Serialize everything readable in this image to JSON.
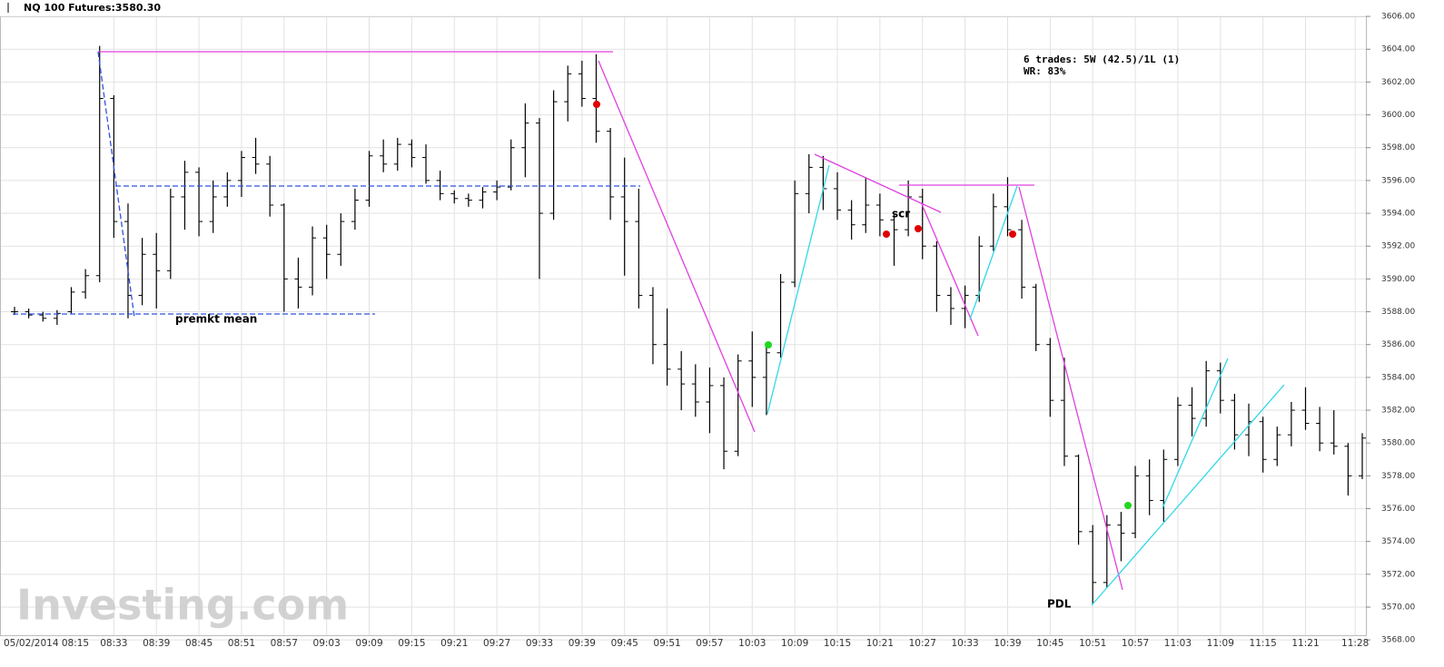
{
  "chart_data": {
    "type": "ohlc",
    "title": "NQ 100 Futures:3580.30",
    "watermark": "Investing.com",
    "annotations": [
      "6 trades: 5W (42.5)/1L (1)",
      "WR: 83%",
      "premkt mean",
      "scr",
      "PDL"
    ],
    "color": "#000000",
    "grid": true,
    "x": [
      "08:19",
      "08:21",
      "08:23",
      "08:25",
      "08:27",
      "08:29",
      "08:31",
      "08:33",
      "08:35",
      "08:37",
      "08:39",
      "08:41",
      "08:43",
      "08:45",
      "08:47",
      "08:49",
      "08:51",
      "08:53",
      "08:55",
      "08:57",
      "08:59",
      "09:01",
      "09:03",
      "09:05",
      "09:07",
      "09:09",
      "09:11",
      "09:13",
      "09:15",
      "09:17",
      "09:19",
      "09:21",
      "09:23",
      "09:25",
      "09:27",
      "09:29",
      "09:31",
      "09:33",
      "09:35",
      "09:37",
      "09:39",
      "09:41",
      "09:43",
      "09:45",
      "09:47",
      "09:49",
      "09:51",
      "09:53",
      "09:55",
      "09:57",
      "09:59",
      "10:01",
      "10:03",
      "10:05",
      "10:07",
      "10:09",
      "10:11",
      "10:13",
      "10:15",
      "10:17",
      "10:19",
      "10:21",
      "10:23",
      "10:25",
      "10:27",
      "10:29",
      "10:31",
      "10:33",
      "10:35",
      "10:37",
      "10:39",
      "10:41",
      "10:43",
      "10:45",
      "10:47",
      "10:49",
      "10:51",
      "10:53",
      "10:55",
      "10:57",
      "10:59",
      "11:01",
      "11:03",
      "11:05",
      "11:07",
      "11:09",
      "11:11",
      "11:13",
      "11:15",
      "11:17",
      "11:19",
      "11:21",
      "11:23",
      "11:25",
      "11:27",
      "11:29"
    ],
    "ohlc": [
      [
        3588,
        3588.3,
        3587.8,
        3588
      ],
      [
        3588,
        3588.2,
        3587.6,
        3587.8
      ],
      [
        3587.8,
        3588,
        3587.4,
        3587.6
      ],
      [
        3587.6,
        3588.1,
        3587.2,
        3587.9
      ],
      [
        3588,
        3589.5,
        3587.9,
        3589.2
      ],
      [
        3589.2,
        3590.6,
        3588.8,
        3590.2
      ],
      [
        3590.2,
        3604.2,
        3589.8,
        3601
      ],
      [
        3601,
        3601.2,
        3592.5,
        3593.5
      ],
      [
        3593.5,
        3594.6,
        3587.6,
        3589
      ],
      [
        3589,
        3592.5,
        3588.4,
        3591.5
      ],
      [
        3591.5,
        3592.8,
        3588.2,
        3590.5
      ],
      [
        3590.5,
        3595.5,
        3590,
        3595
      ],
      [
        3595,
        3597.2,
        3593,
        3596.5
      ],
      [
        3596.5,
        3596.8,
        3592.6,
        3593.5
      ],
      [
        3593.5,
        3596,
        3592.8,
        3595
      ],
      [
        3595,
        3596.5,
        3594.4,
        3596
      ],
      [
        3596,
        3597.8,
        3595,
        3597.4
      ],
      [
        3597.4,
        3598.6,
        3596.4,
        3597
      ],
      [
        3597,
        3597.5,
        3593.8,
        3594.5
      ],
      [
        3594.5,
        3594.6,
        3588,
        3590
      ],
      [
        3590,
        3591.3,
        3588.2,
        3589.5
      ],
      [
        3589.5,
        3593.2,
        3589,
        3592.5
      ],
      [
        3592.5,
        3593.3,
        3590,
        3591.5
      ],
      [
        3591.5,
        3594,
        3590.8,
        3593.5
      ],
      [
        3593.5,
        3595.5,
        3593,
        3594.8
      ],
      [
        3594.8,
        3597.8,
        3594.4,
        3597.5
      ],
      [
        3597.5,
        3598.5,
        3596.5,
        3597
      ],
      [
        3597,
        3598.6,
        3596.6,
        3598.2
      ],
      [
        3598.2,
        3598.5,
        3596.8,
        3597.4
      ],
      [
        3597.4,
        3598.2,
        3595.8,
        3596
      ],
      [
        3596,
        3596.6,
        3594.8,
        3595.2
      ],
      [
        3595.2,
        3595.4,
        3594.6,
        3594.9
      ],
      [
        3594.9,
        3595.2,
        3594.4,
        3594.8
      ],
      [
        3594.8,
        3595.6,
        3594.3,
        3595.3
      ],
      [
        3595.3,
        3596,
        3594.8,
        3595.6
      ],
      [
        3595.6,
        3598.5,
        3595.4,
        3598
      ],
      [
        3598,
        3600.7,
        3596.2,
        3599.5
      ],
      [
        3599.5,
        3599.8,
        3590,
        3594
      ],
      [
        3594,
        3601.5,
        3593.6,
        3600.8
      ],
      [
        3600.8,
        3603,
        3599.6,
        3602.5
      ],
      [
        3602.5,
        3603.3,
        3600.5,
        3601
      ],
      [
        3601,
        3603.7,
        3598.3,
        3599
      ],
      [
        3599,
        3599.2,
        3593.6,
        3595
      ],
      [
        3595,
        3597.4,
        3590.2,
        3593.5
      ],
      [
        3593.5,
        3595.5,
        3588.2,
        3589
      ],
      [
        3589,
        3589.5,
        3584.8,
        3586
      ],
      [
        3586,
        3588.2,
        3583.5,
        3584.5
      ],
      [
        3584.5,
        3585.6,
        3582,
        3583.6
      ],
      [
        3583.6,
        3584.8,
        3581.6,
        3582.5
      ],
      [
        3582.5,
        3584.6,
        3580.6,
        3583.5
      ],
      [
        3583.5,
        3584,
        3578.4,
        3579.5
      ],
      [
        3579.5,
        3585.4,
        3579.2,
        3585
      ],
      [
        3585,
        3586.8,
        3582.2,
        3584
      ],
      [
        3584,
        3586,
        3581.7,
        3585.5
      ],
      [
        3585.5,
        3590.3,
        3585.2,
        3589.8
      ],
      [
        3589.8,
        3596,
        3589.5,
        3595.2
      ],
      [
        3595.2,
        3597.6,
        3594,
        3596.8
      ],
      [
        3596.8,
        3597.5,
        3594.2,
        3595.5
      ],
      [
        3595.5,
        3596.5,
        3593.6,
        3594.2
      ],
      [
        3594.2,
        3594.8,
        3592.4,
        3593.3
      ],
      [
        3593.3,
        3596.2,
        3592.8,
        3594.5
      ],
      [
        3594.5,
        3595.2,
        3592.6,
        3593.6
      ],
      [
        3593.6,
        3594,
        3590.8,
        3593
      ],
      [
        3593,
        3596,
        3592.6,
        3595
      ],
      [
        3595,
        3595.5,
        3591.2,
        3592
      ],
      [
        3592,
        3592.3,
        3588,
        3589
      ],
      [
        3589,
        3589.5,
        3587.2,
        3588.2
      ],
      [
        3588.2,
        3589.6,
        3587,
        3589
      ],
      [
        3589,
        3592.6,
        3588.6,
        3592
      ],
      [
        3592,
        3595.2,
        3591.7,
        3594.4
      ],
      [
        3594.4,
        3596.2,
        3592.6,
        3593
      ],
      [
        3593,
        3593.6,
        3588.8,
        3589.5
      ],
      [
        3589.5,
        3589.7,
        3585.6,
        3586
      ],
      [
        3586,
        3586.4,
        3581.6,
        3582.6
      ],
      [
        3582.6,
        3585.2,
        3578.6,
        3579.2
      ],
      [
        3579.2,
        3579.3,
        3573.8,
        3574.6
      ],
      [
        3574.6,
        3575,
        3570.2,
        3571.5
      ],
      [
        3571.5,
        3575.6,
        3571.2,
        3575
      ],
      [
        3575,
        3575.8,
        3572.8,
        3574.5
      ],
      [
        3574.5,
        3578.6,
        3574.2,
        3578
      ],
      [
        3578,
        3579,
        3575.6,
        3576.5
      ],
      [
        3576.5,
        3579.6,
        3575.2,
        3579
      ],
      [
        3579,
        3582.8,
        3578.6,
        3582.3
      ],
      [
        3582.3,
        3583.4,
        3580.4,
        3581.5
      ],
      [
        3581.5,
        3585,
        3581,
        3584.4
      ],
      [
        3584.4,
        3584.9,
        3581.8,
        3582.6
      ],
      [
        3582.6,
        3583,
        3579.6,
        3580.5
      ],
      [
        3580.5,
        3582.4,
        3579.2,
        3581.3
      ],
      [
        3581.3,
        3581.6,
        3578.2,
        3579
      ],
      [
        3579,
        3581,
        3578.6,
        3580.5
      ],
      [
        3580.5,
        3582.5,
        3579.8,
        3582
      ],
      [
        3582,
        3583.4,
        3580.8,
        3581.2
      ],
      [
        3581.2,
        3582.2,
        3579.5,
        3580
      ],
      [
        3580,
        3582,
        3579.3,
        3579.8
      ],
      [
        3579.8,
        3580,
        3576.8,
        3578
      ],
      [
        3578,
        3580.6,
        3577.8,
        3580.3
      ]
    ],
    "ylim": [
      3567.4,
      3607
    ],
    "yticks": [
      {
        "value": 3568,
        "label": "3568.00"
      },
      {
        "value": 3570,
        "label": "3570.00"
      },
      {
        "value": 3572,
        "label": "3572.00"
      },
      {
        "value": 3574,
        "label": "3574.00"
      },
      {
        "value": 3576,
        "label": "3576.00"
      },
      {
        "value": 3578,
        "label": "3578.00"
      },
      {
        "value": 3580,
        "label": "3580.00"
      },
      {
        "value": 3582,
        "label": "3582.00"
      },
      {
        "value": 3584,
        "label": "3584.00"
      },
      {
        "value": 3586,
        "label": "3586.00"
      },
      {
        "value": 3588,
        "label": "3588.00"
      },
      {
        "value": 3590,
        "label": "3590.00"
      },
      {
        "value": 3592,
        "label": "3592.00"
      },
      {
        "value": 3594,
        "label": "3594.00"
      },
      {
        "value": 3596,
        "label": "3596.00"
      },
      {
        "value": 3598,
        "label": "3598.00"
      },
      {
        "value": 3600,
        "label": "3600.00"
      },
      {
        "value": 3602,
        "label": "3602.00"
      },
      {
        "value": 3604,
        "label": "3604.00"
      },
      {
        "value": 3606,
        "label": "3606.00"
      }
    ],
    "xticks": [
      "05/02/2014 08:15",
      "08:33",
      "08:39",
      "08:45",
      "08:51",
      "08:57",
      "09:03",
      "09:09",
      "09:15",
      "09:21",
      "09:27",
      "09:33",
      "09:39",
      "09:45",
      "09:51",
      "09:57",
      "10:03",
      "10:09",
      "10:15",
      "10:21",
      "10:27",
      "10:33",
      "10:39",
      "10:45",
      "10:51",
      "10:57",
      "11:03",
      "11:09",
      "11:15",
      "11:21",
      "11:28"
    ]
  }
}
